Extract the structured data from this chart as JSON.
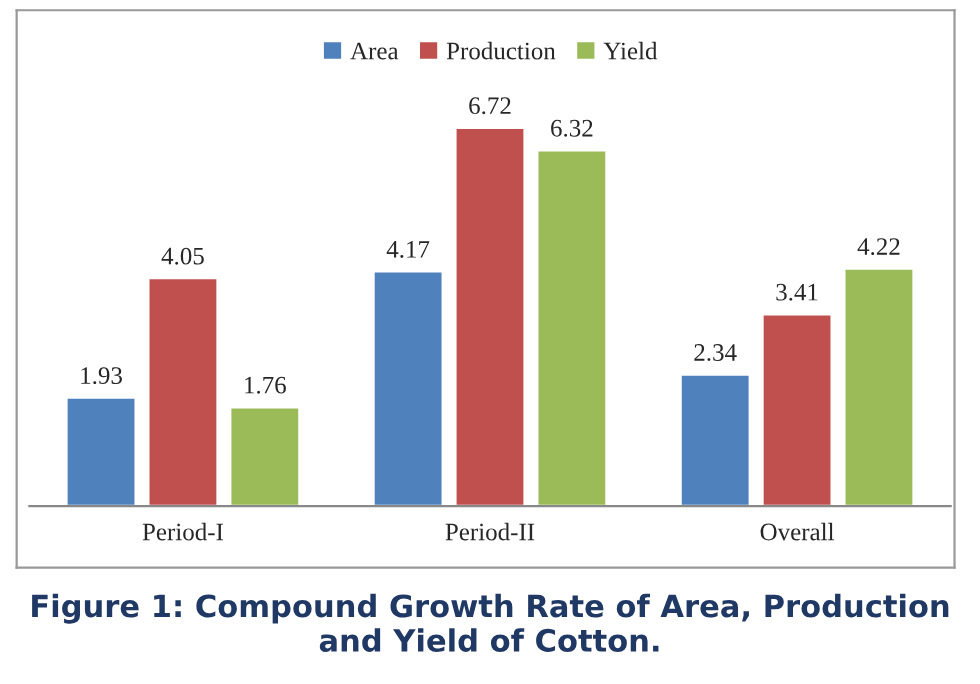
{
  "chart_data": {
    "type": "bar",
    "categories": [
      "Period-I",
      "Period-II",
      "Overall"
    ],
    "series": [
      {
        "name": "Area",
        "color": "#4f81bd",
        "values": [
          1.93,
          4.17,
          2.34
        ]
      },
      {
        "name": "Production",
        "color": "#c0504d",
        "values": [
          4.05,
          6.72,
          3.41
        ]
      },
      {
        "name": "Yield",
        "color": "#9bbb59",
        "values": [
          1.76,
          6.32,
          4.22
        ]
      }
    ],
    "data_labels": true,
    "legend": "top",
    "grid": false,
    "annotations": [
      "Figure 1: Compound Growth Rate of Area, Production and Yield of Cotton."
    ]
  }
}
